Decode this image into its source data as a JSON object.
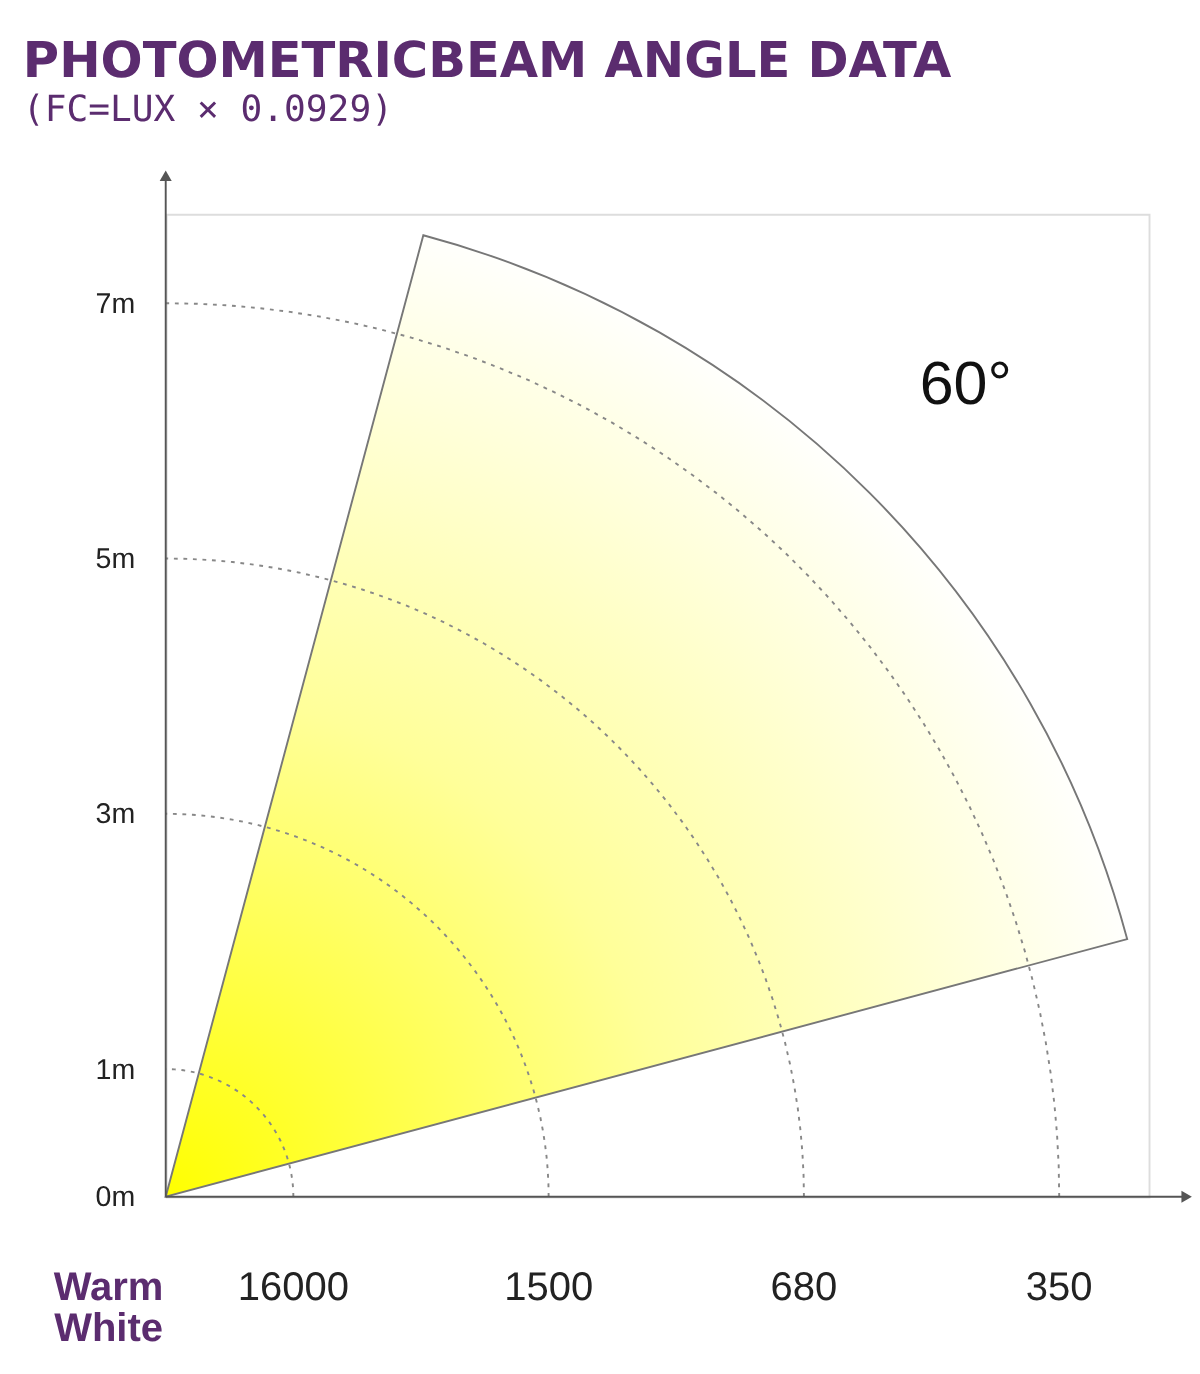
{
  "chart_data": {
    "type": "other",
    "title": "PHOTOMETRICBEAM ANGLE DATA",
    "subtitle": "(FC=LUX × 0.0929)",
    "xlabel": "Warm White",
    "y_categories": [
      "7m",
      "5m",
      "3m",
      "1m",
      "0m"
    ],
    "values": [
      16000,
      1500,
      680,
      350
    ],
    "data_labels": true,
    "annotations": [
      "60°"
    ]
  }
}
